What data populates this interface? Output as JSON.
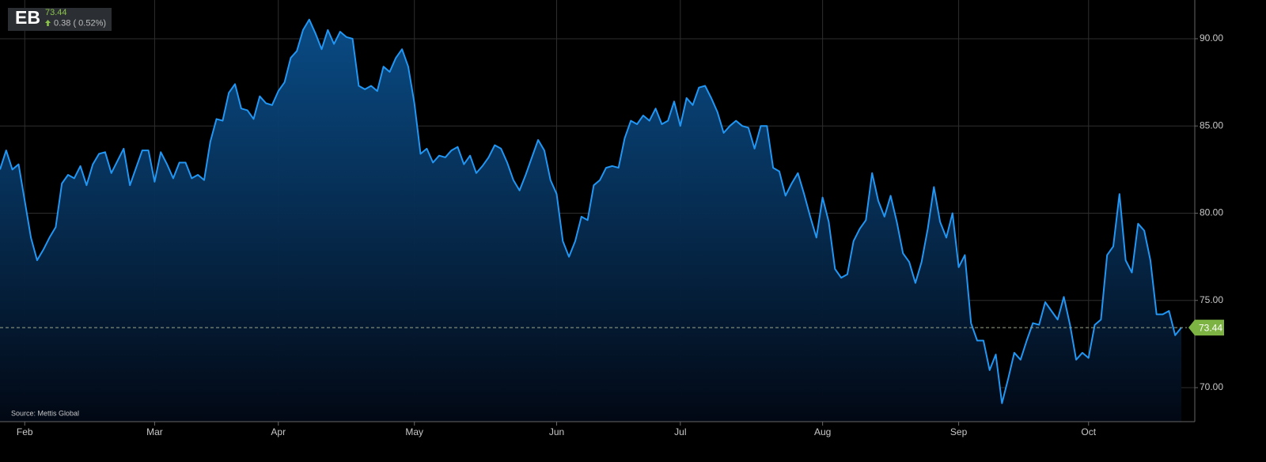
{
  "chart_data": {
    "type": "area",
    "symbol": "EB",
    "last_price": 73.44,
    "change": "0.38 ( 0.52%)",
    "source": "Source: Mettis Global",
    "color": "#2196f3",
    "grid": true,
    "categories": [
      null,
      null,
      null,
      null,
      "Feb",
      null,
      null,
      null,
      null,
      null,
      null,
      null,
      null,
      null,
      null,
      null,
      null,
      null,
      null,
      null,
      null,
      null,
      null,
      null,
      null,
      "Mar",
      null,
      null,
      null,
      null,
      null,
      null,
      null,
      null,
      null,
      null,
      null,
      null,
      null,
      null,
      null,
      null,
      null,
      null,
      null,
      "Apr",
      null,
      null,
      null,
      null,
      null,
      null,
      null,
      null,
      null,
      null,
      null,
      null,
      null,
      null,
      null,
      null,
      null,
      null,
      null,
      null,
      null,
      "May",
      null,
      null,
      null,
      null,
      null,
      null,
      null,
      null,
      null,
      null,
      null,
      null,
      null,
      null,
      null,
      null,
      null,
      null,
      null,
      null,
      null,
      null,
      "Jun",
      null,
      null,
      null,
      null,
      null,
      null,
      null,
      null,
      null,
      null,
      null,
      null,
      null,
      null,
      null,
      null,
      null,
      null,
      null,
      "Jul",
      null,
      null,
      null,
      null,
      null,
      null,
      null,
      null,
      null,
      null,
      null,
      null,
      null,
      null,
      null,
      null,
      null,
      null,
      null,
      null,
      null,
      null,
      "Aug",
      null,
      null,
      null,
      null,
      null,
      null,
      null,
      null,
      null,
      null,
      null,
      null,
      null,
      null,
      null,
      null,
      null,
      null,
      null,
      null,
      null,
      "Sep",
      null,
      null,
      null,
      null,
      null,
      null,
      null,
      null,
      null,
      null,
      null,
      null,
      null,
      null,
      null,
      null,
      null,
      null,
      null,
      null,
      "Oct",
      null,
      null,
      null,
      null,
      null,
      null,
      null,
      null,
      null,
      null,
      null,
      null,
      null,
      null,
      null
    ],
    "values": [
      82.5,
      83.6,
      82.5,
      82.8,
      80.7,
      78.6,
      77.3,
      77.9,
      78.6,
      79.2,
      81.7,
      82.2,
      82.0,
      82.7,
      81.6,
      82.8,
      83.4,
      83.5,
      82.3,
      83.0,
      83.7,
      81.6,
      82.6,
      83.6,
      83.6,
      81.8,
      83.5,
      82.8,
      82.0,
      82.9,
      82.9,
      82.0,
      82.2,
      81.9,
      84.1,
      85.4,
      85.3,
      86.9,
      87.4,
      86.0,
      85.9,
      85.4,
      86.7,
      86.3,
      86.2,
      87.0,
      87.5,
      88.9,
      89.3,
      90.5,
      91.1,
      90.3,
      89.4,
      90.5,
      89.7,
      90.4,
      90.1,
      90.0,
      87.3,
      87.1,
      87.3,
      87.0,
      88.4,
      88.1,
      88.9,
      89.4,
      88.4,
      86.3,
      83.4,
      83.7,
      82.9,
      83.3,
      83.2,
      83.6,
      83.8,
      82.8,
      83.3,
      82.3,
      82.7,
      83.2,
      83.9,
      83.7,
      82.9,
      81.9,
      81.3,
      82.2,
      83.2,
      84.2,
      83.6,
      81.9,
      81.1,
      78.4,
      77.5,
      78.4,
      79.8,
      79.6,
      81.6,
      81.9,
      82.6,
      82.7,
      82.6,
      84.3,
      85.3,
      85.1,
      85.6,
      85.3,
      86.0,
      85.1,
      85.3,
      86.4,
      85.0,
      86.6,
      86.2,
      87.2,
      87.3,
      86.6,
      85.8,
      84.6,
      85.0,
      85.3,
      85.0,
      84.9,
      83.7,
      85.0,
      85.0,
      82.6,
      82.4,
      81.0,
      81.7,
      82.3,
      81.1,
      79.8,
      78.6,
      80.9,
      79.5,
      76.8,
      76.3,
      76.5,
      78.4,
      79.1,
      79.6,
      82.3,
      80.7,
      79.8,
      81.0,
      79.5,
      77.7,
      77.2,
      76.0,
      77.2,
      79.1,
      81.5,
      79.5,
      78.6,
      80.0,
      76.9,
      77.6,
      73.7,
      72.7,
      72.7,
      71.0,
      71.9,
      69.1,
      70.5,
      72.0,
      71.6,
      72.7,
      73.7,
      73.6,
      74.9,
      74.4,
      73.9,
      75.2,
      73.6,
      71.6,
      72.0,
      71.7,
      73.6,
      73.9,
      77.6,
      78.1,
      81.1,
      77.3,
      76.6,
      79.4,
      79.0,
      77.3,
      74.2,
      74.2,
      74.4,
      73.0,
      73.44
    ],
    "ylim": [
      68.05,
      92.22
    ],
    "yticks": [
      {
        "value": 70,
        "label": "70.00"
      },
      {
        "value": 75,
        "label": "75.00"
      },
      {
        "value": 80,
        "label": "80.00"
      },
      {
        "value": 85,
        "label": "85.00"
      },
      {
        "value": 90,
        "label": "90.00"
      }
    ]
  }
}
